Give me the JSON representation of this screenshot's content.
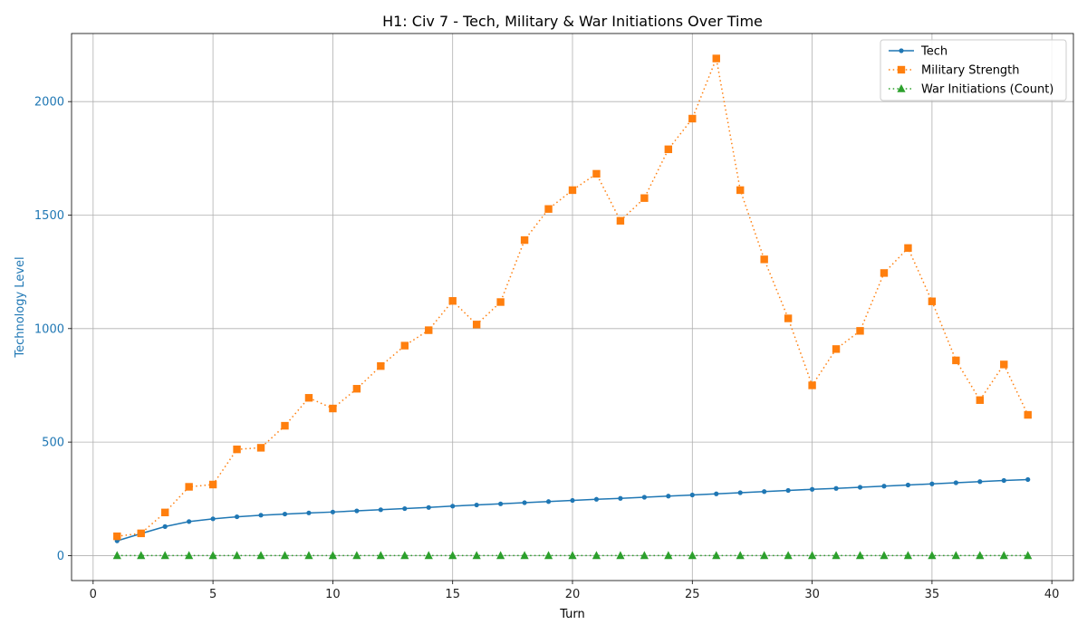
{
  "chart_data": {
    "type": "line",
    "title": "H1: Civ 7 - Tech, Military & War Initiations Over Time",
    "xlabel": "Turn",
    "ylabel": "Technology Level",
    "xlim": [
      -0.9,
      40.9
    ],
    "ylim": [
      -110,
      2300
    ],
    "xticks": [
      0,
      5,
      10,
      15,
      20,
      25,
      30,
      35,
      40
    ],
    "yticks": [
      0,
      500,
      1000,
      1500,
      2000
    ],
    "grid": true,
    "legend_position": "top-right",
    "x": [
      1,
      2,
      3,
      4,
      5,
      6,
      7,
      8,
      9,
      10,
      11,
      12,
      13,
      14,
      15,
      16,
      17,
      18,
      19,
      20,
      21,
      22,
      23,
      24,
      25,
      26,
      27,
      28,
      29,
      30,
      31,
      32,
      33,
      34,
      35,
      36,
      37,
      38,
      39
    ],
    "series": [
      {
        "name": "Tech",
        "color": "#1f77b4",
        "line_style": "solid",
        "marker": "circle",
        "values": [
          65,
          97,
          128,
          150,
          162,
          171,
          178,
          183,
          188,
          192,
          197,
          202,
          207,
          212,
          218,
          223,
          228,
          233,
          238,
          243,
          248,
          252,
          257,
          262,
          267,
          272,
          277,
          282,
          287,
          292,
          296,
          301,
          306,
          311,
          316,
          321,
          326,
          331,
          335
        ]
      },
      {
        "name": "Military Strength",
        "color": "#ff7f0e",
        "line_style": "dotted",
        "marker": "square",
        "values": [
          85,
          98,
          190,
          303,
          313,
          468,
          475,
          572,
          695,
          648,
          735,
          835,
          925,
          993,
          1122,
          1018,
          1117,
          1390,
          1527,
          1610,
          1682,
          1475,
          1575,
          1790,
          1925,
          2190,
          1610,
          1305,
          1045,
          750,
          910,
          990,
          1245,
          1355,
          1120,
          860,
          685,
          842,
          620
        ]
      },
      {
        "name": "War Initiations (Count)",
        "color": "#2ca02c",
        "line_style": "dotted",
        "marker": "triangle",
        "values": [
          0,
          0,
          0,
          0,
          0,
          0,
          0,
          0,
          0,
          0,
          0,
          0,
          0,
          0,
          0,
          0,
          0,
          0,
          0,
          0,
          0,
          0,
          0,
          0,
          0,
          0,
          0,
          0,
          0,
          0,
          0,
          0,
          0,
          0,
          0,
          0,
          0,
          0,
          0
        ]
      }
    ]
  }
}
